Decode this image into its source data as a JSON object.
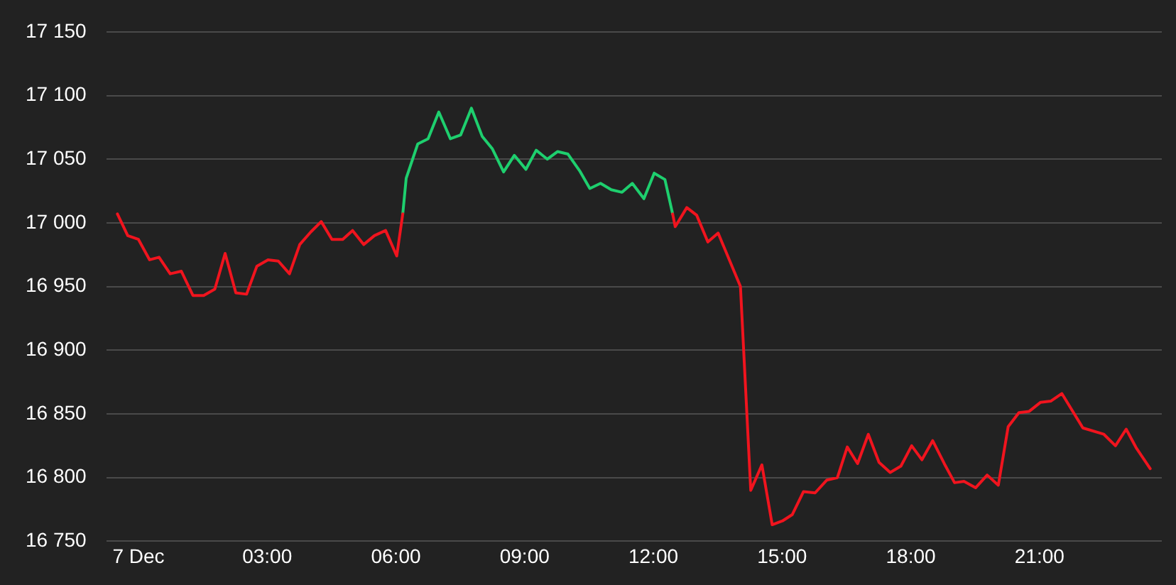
{
  "chart_data": {
    "type": "line",
    "xlim": [
      -0.75,
      23.85
    ],
    "ylim": [
      16750,
      17150
    ],
    "xticks": [
      {
        "value": 0,
        "label": "7 Dec"
      },
      {
        "value": 3,
        "label": "03:00"
      },
      {
        "value": 6,
        "label": "06:00"
      },
      {
        "value": 9,
        "label": "09:00"
      },
      {
        "value": 12,
        "label": "12:00"
      },
      {
        "value": 15,
        "label": "15:00"
      },
      {
        "value": 18,
        "label": "18:00"
      },
      {
        "value": 21,
        "label": "21:00"
      }
    ],
    "yticks": [
      {
        "value": 16750,
        "label": "16 750"
      },
      {
        "value": 16800,
        "label": "16 800"
      },
      {
        "value": 16850,
        "label": "16 850"
      },
      {
        "value": 16900,
        "label": "16 900"
      },
      {
        "value": 16950,
        "label": "16 950"
      },
      {
        "value": 17000,
        "label": "17 000"
      },
      {
        "value": 17050,
        "label": "17 050"
      },
      {
        "value": 17100,
        "label": "17 100"
      },
      {
        "value": 17150,
        "label": "17 150"
      }
    ],
    "grid": "y",
    "legend": false,
    "marker": "none",
    "line_style": "solid",
    "series": [
      {
        "color": "#f0141e",
        "x": [
          -0.49,
          -0.25,
          0,
          0.26,
          0.48,
          0.74,
          1.0,
          1.27,
          1.52,
          1.78,
          2.02,
          2.27,
          2.52,
          2.76,
          3.02,
          3.26,
          3.52,
          3.76,
          4.02,
          4.26,
          4.51,
          4.76,
          4.99,
          5.25,
          5.5,
          5.76,
          6.02,
          6.16,
          6.2,
          12.45,
          12.51,
          12.78,
          13.01,
          13.27,
          13.51,
          14.03,
          14.27,
          14.53,
          14.77,
          15.01,
          15.24,
          15.5,
          15.77,
          16.04,
          16.29,
          16.52,
          16.76,
          17.01,
          17.26,
          17.52,
          17.77,
          18.02,
          18.26,
          18.51,
          18.78,
          19.02,
          19.24,
          19.51,
          19.78,
          20.04,
          20.27,
          20.52,
          20.76,
          21.02,
          21.26,
          21.52,
          22.01,
          22.5,
          22.77,
          23.02,
          23.26,
          23.58
        ],
        "values": [
          17007,
          16990,
          16987,
          16971,
          16973,
          16960,
          16962,
          16943,
          16943,
          16948,
          16976,
          16945,
          16944,
          16966,
          16971,
          16970,
          16960,
          16983,
          16993,
          17001,
          16987,
          16987,
          16994,
          16983,
          16990,
          16994,
          16974,
          17007,
          null,
          17007,
          16997,
          17012,
          17006,
          16985,
          16992,
          16950,
          16790,
          16810,
          16763,
          16766,
          16771,
          16789,
          16788,
          16798,
          16800,
          16824,
          16811,
          16834,
          16812,
          16804,
          16809,
          16825,
          16814,
          16829,
          16811,
          16796,
          16797,
          16792,
          16802,
          16794,
          16840,
          16851,
          16852,
          16859,
          16860,
          16866,
          16839,
          16834,
          16825,
          16838,
          16823,
          16807
        ]
      },
      {
        "color": "#1ecf6e",
        "x": [
          6.16,
          6.24,
          6.51,
          6.75,
          7.0,
          7.27,
          7.51,
          7.76,
          8.01,
          8.25,
          8.51,
          8.76,
          9.03,
          9.27,
          9.53,
          9.77,
          10.01,
          10.28,
          10.52,
          10.77,
          11.02,
          11.27,
          11.51,
          11.78,
          12.02,
          12.27,
          12.45
        ],
        "values": [
          17007,
          17035,
          17062,
          17066,
          17087,
          17066,
          17069,
          17090,
          17068,
          17058,
          17040,
          17053,
          17042,
          17057,
          17050,
          17056,
          17054,
          17041,
          17027,
          17031,
          17026,
          17024,
          17031,
          17019,
          17039,
          17034,
          17007
        ]
      }
    ]
  }
}
